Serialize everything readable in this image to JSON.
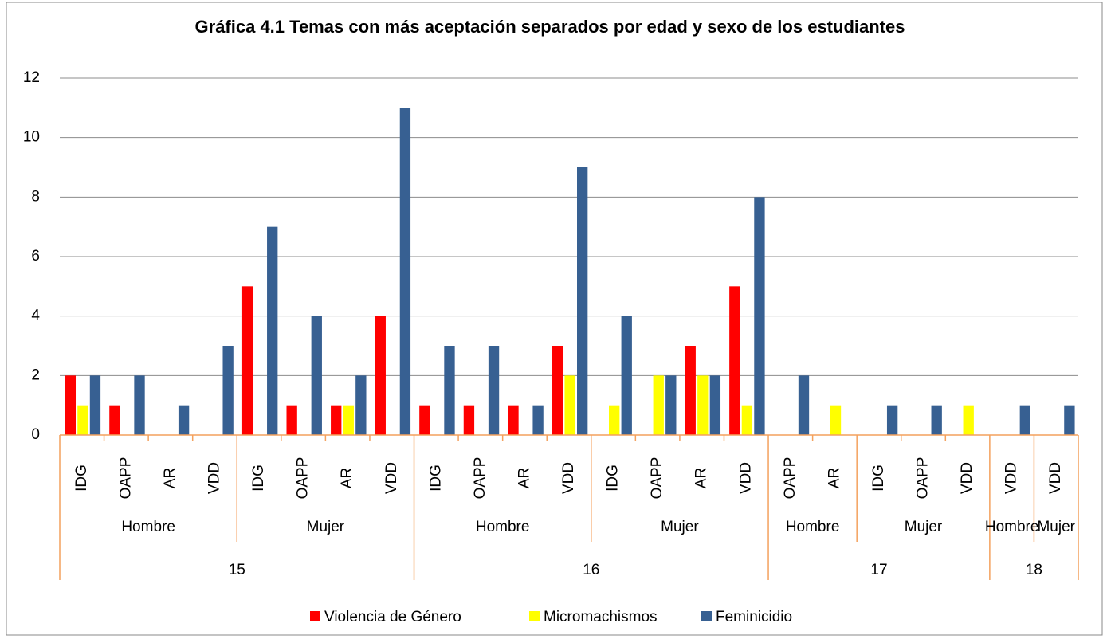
{
  "chart_data": {
    "type": "bar",
    "title": "Gráfica 4.1 Temas con más aceptación separados por edad y sexo de los estudiantes",
    "categories": [
      [
        "15",
        "Hombre",
        "IDG"
      ],
      [
        "15",
        "Hombre",
        "OAPP"
      ],
      [
        "15",
        "Hombre",
        "AR"
      ],
      [
        "15",
        "Hombre",
        "VDD"
      ],
      [
        "15",
        "Mujer",
        "IDG"
      ],
      [
        "15",
        "Mujer",
        "OAPP"
      ],
      [
        "15",
        "Mujer",
        "AR"
      ],
      [
        "15",
        "Mujer",
        "VDD"
      ],
      [
        "16",
        "Hombre",
        "IDG"
      ],
      [
        "16",
        "Hombre",
        "OAPP"
      ],
      [
        "16",
        "Hombre",
        "AR"
      ],
      [
        "16",
        "Hombre",
        "VDD"
      ],
      [
        "16",
        "Mujer",
        "IDG"
      ],
      [
        "16",
        "Mujer",
        "OAPP"
      ],
      [
        "16",
        "Mujer",
        "AR"
      ],
      [
        "16",
        "Mujer",
        "VDD"
      ],
      [
        "17",
        "Hombre",
        "OAPP"
      ],
      [
        "17",
        "Hombre",
        "AR"
      ],
      [
        "17",
        "Mujer",
        "IDG"
      ],
      [
        "17",
        "Mujer",
        "OAPP"
      ],
      [
        "17",
        "Mujer",
        "VDD"
      ],
      [
        "18",
        "Hombre",
        "VDD"
      ],
      [
        "18",
        "Mujer",
        "VDD"
      ]
    ],
    "series": [
      {
        "name": "Violencia de Género",
        "color": "#ff0000",
        "values": [
          2,
          1,
          null,
          null,
          5,
          1,
          1,
          4,
          1,
          1,
          1,
          3,
          null,
          null,
          3,
          5,
          null,
          null,
          null,
          null,
          null,
          null,
          null
        ]
      },
      {
        "name": "Micromachismos",
        "color": "#ffff00",
        "values": [
          1,
          null,
          null,
          null,
          null,
          null,
          1,
          null,
          null,
          null,
          null,
          2,
          1,
          2,
          2,
          1,
          null,
          1,
          null,
          null,
          1,
          null,
          null
        ]
      },
      {
        "name": "Feminicidio",
        "color": "#376092",
        "values": [
          2,
          2,
          1,
          3,
          7,
          4,
          2,
          11,
          3,
          3,
          1,
          9,
          4,
          2,
          2,
          8,
          2,
          null,
          1,
          1,
          null,
          1,
          1
        ]
      }
    ],
    "ylim": [
      0,
      12
    ],
    "yticks": [
      0,
      2,
      4,
      6,
      8,
      10,
      12
    ],
    "grid": true,
    "legend": "bottom"
  }
}
